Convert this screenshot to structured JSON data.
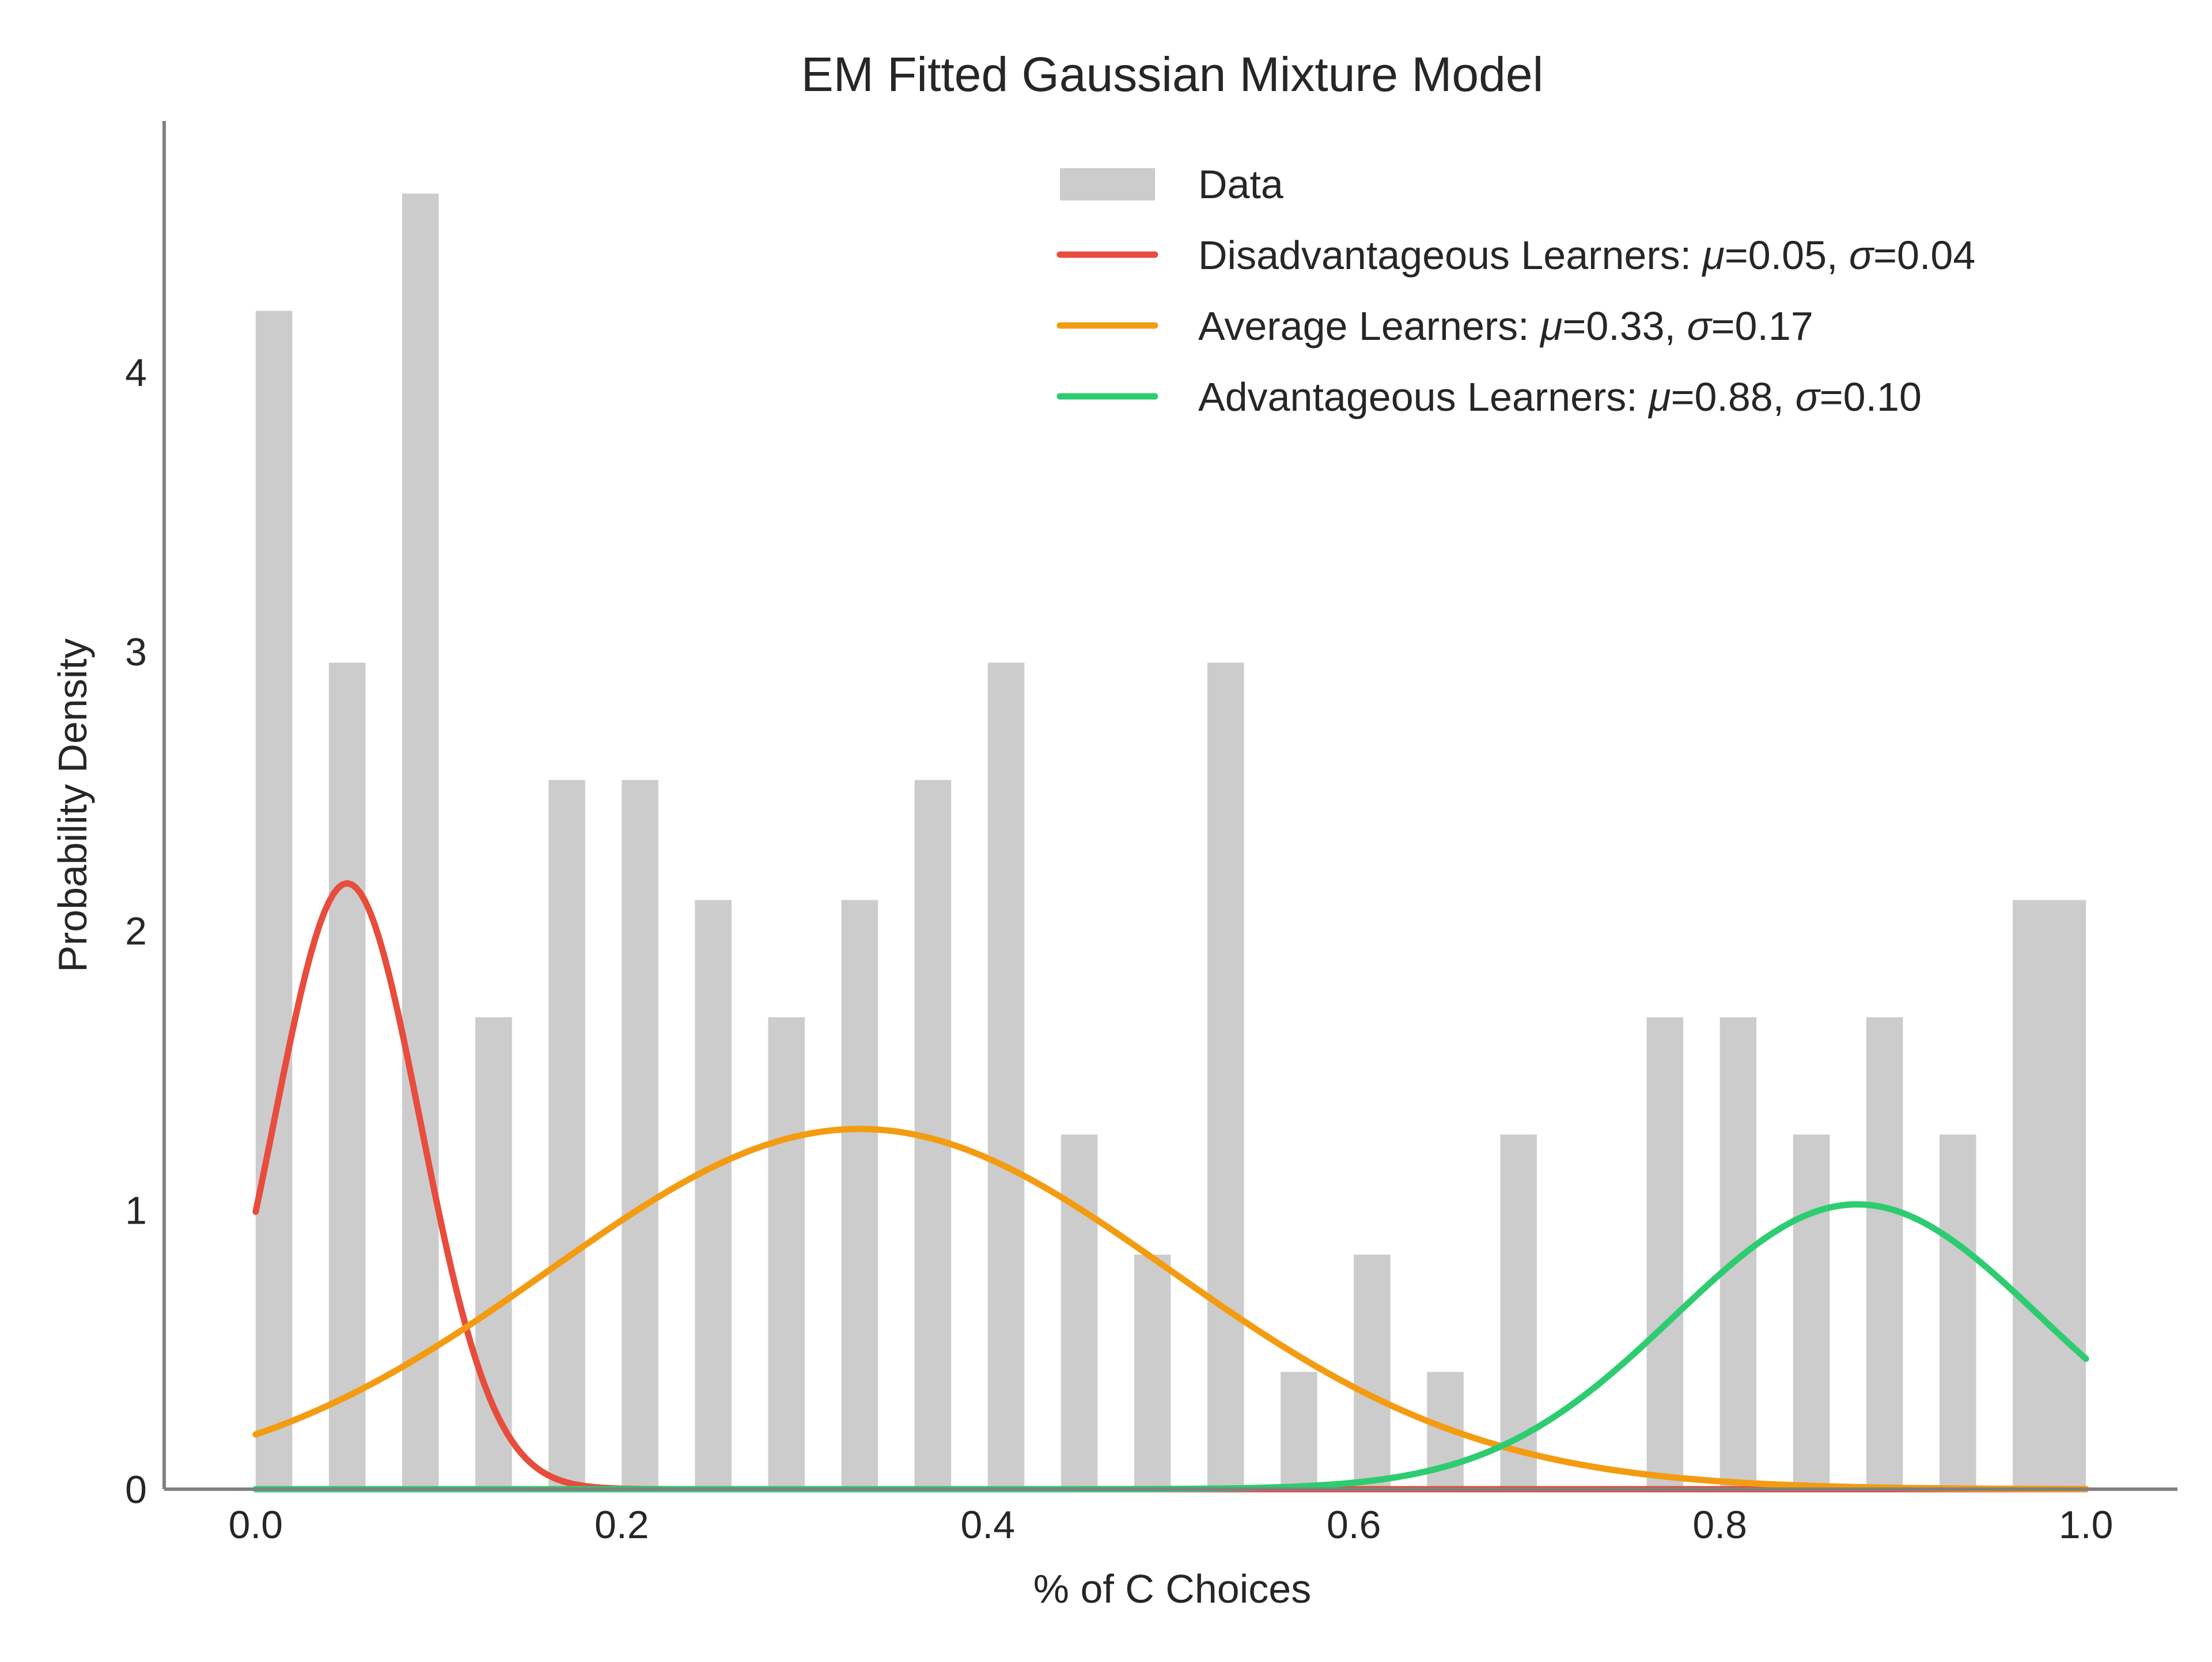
{
  "chart_data": {
    "type": "bar",
    "title": "EM Fitted Gaussian Mixture Model",
    "xlabel": "% of C Choices",
    "ylabel": "Probability Density",
    "xlim": [
      -0.05,
      1.05
    ],
    "ylim": [
      0,
      4.9
    ],
    "x_ticks": [
      0.0,
      0.2,
      0.4,
      0.6,
      0.8,
      1.0
    ],
    "x_tick_labels": [
      "0.0",
      "0.2",
      "0.4",
      "0.6",
      "0.8",
      "1.0"
    ],
    "y_ticks": [
      0,
      1,
      2,
      3,
      4
    ],
    "y_tick_labels": [
      "0",
      "1",
      "2",
      "3",
      "4"
    ],
    "grid": false,
    "legend_position": "top-right",
    "histogram": {
      "name": "Data",
      "color": "#cccccc",
      "bins": [
        {
          "x": 0.0,
          "value": 4.22
        },
        {
          "x": 0.04,
          "value": 2.96
        },
        {
          "x": 0.08,
          "value": 4.64
        },
        {
          "x": 0.12,
          "value": 1.69
        },
        {
          "x": 0.16,
          "value": 2.54
        },
        {
          "x": 0.2,
          "value": 2.54
        },
        {
          "x": 0.24,
          "value": 2.11
        },
        {
          "x": 0.28,
          "value": 1.69
        },
        {
          "x": 0.32,
          "value": 2.11
        },
        {
          "x": 0.36,
          "value": 2.54
        },
        {
          "x": 0.4,
          "value": 2.96
        },
        {
          "x": 0.44,
          "value": 1.27
        },
        {
          "x": 0.48,
          "value": 0.84
        },
        {
          "x": 0.52,
          "value": 2.96
        },
        {
          "x": 0.56,
          "value": 0.42
        },
        {
          "x": 0.6,
          "value": 0.84
        },
        {
          "x": 0.64,
          "value": 0.42
        },
        {
          "x": 0.68,
          "value": 1.27
        },
        {
          "x": 0.76,
          "value": 1.69
        },
        {
          "x": 0.8,
          "value": 1.69
        },
        {
          "x": 0.84,
          "value": 1.27
        },
        {
          "x": 0.88,
          "value": 1.69
        },
        {
          "x": 0.92,
          "value": 1.27
        },
        {
          "x": 0.96,
          "value": 2.11
        },
        {
          "x": 0.98,
          "value": 2.11
        }
      ],
      "bin_width": 0.02
    },
    "series": [
      {
        "name": "Disadvantageous Learners",
        "mu": 0.05,
        "sigma": 0.04,
        "peak": 2.17,
        "mu_text": "=0.05",
        "sigma_text": "=0.04",
        "color": "#e74c3c"
      },
      {
        "name": "Average Learners",
        "mu": 0.33,
        "sigma": 0.17,
        "peak": 1.29,
        "mu_text": "=0.33",
        "sigma_text": "=0.17",
        "color": "#f39c12"
      },
      {
        "name": "Advantageous Learners",
        "mu": 0.875,
        "sigma": 0.1,
        "peak": 1.02,
        "mu_text": "=0.88",
        "sigma_text": "=0.10",
        "color": "#2ecc71"
      }
    ],
    "legend": {
      "data_label": "Data",
      "mu_symbol": "μ",
      "sigma_symbol": "σ"
    }
  }
}
